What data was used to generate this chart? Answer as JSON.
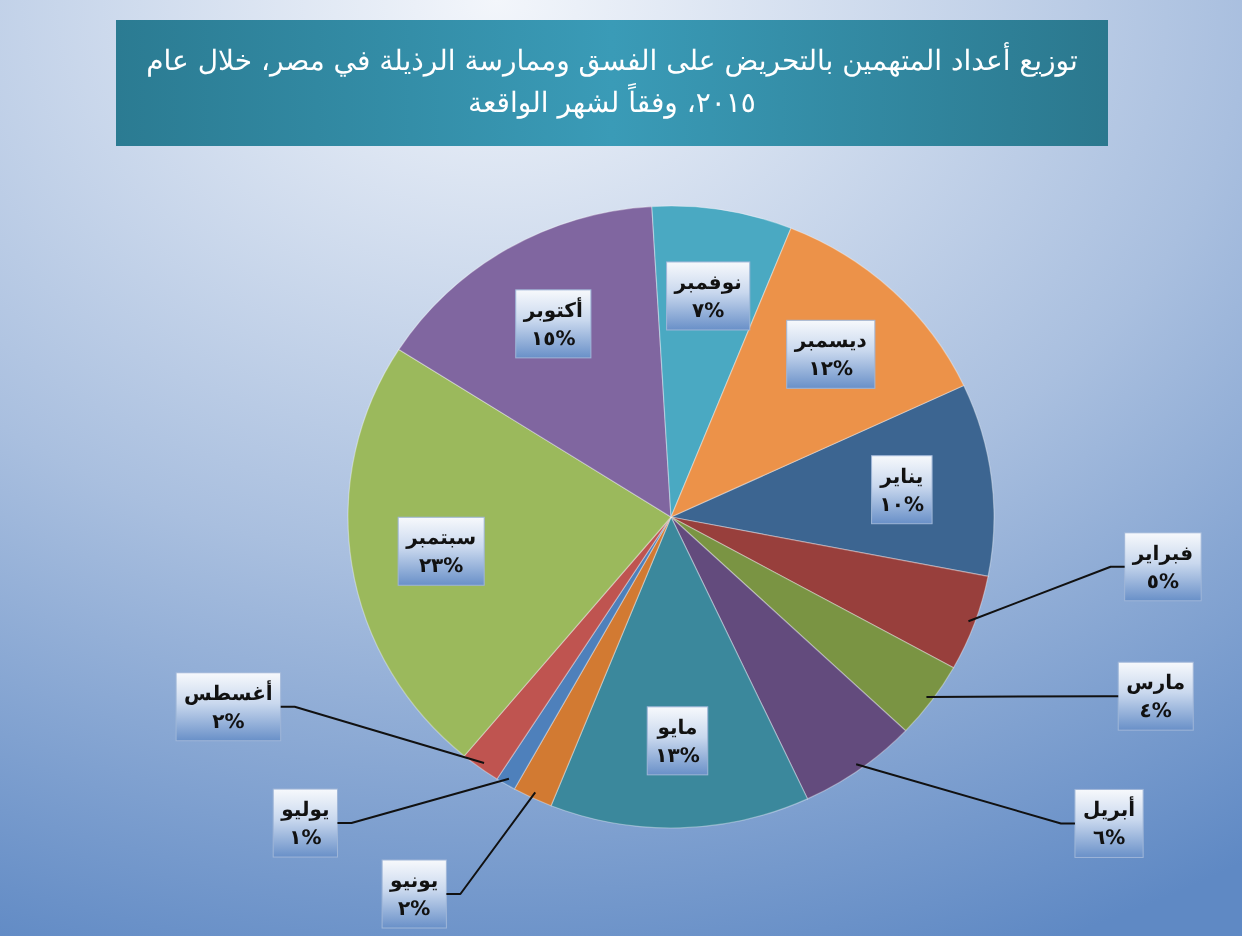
{
  "chart_data": {
    "type": "pie",
    "title": "توزيع أعداد المتهمين بالتحريض على الفسق وممارسة الرذيلة في مصر، خلال عام ٢٠١٥، وفقاً لشهر الواقعة",
    "categories": [
      "يناير",
      "فبراير",
      "مارس",
      "أبريل",
      "مايو",
      "يونيو",
      "يوليو",
      "أغسطس",
      "سبتمبر",
      "أكتوبر",
      "نوفمبر",
      "ديسمبر"
    ],
    "values": [
      10,
      5,
      4,
      6,
      13,
      2,
      1,
      2,
      23,
      15,
      7,
      12
    ],
    "value_labels": [
      "١٠%",
      "٥%",
      "٤%",
      "٦%",
      "١٣%",
      "٢%",
      "١%",
      "٢%",
      "٢٣%",
      "١٥%",
      "٧%",
      "١٢%"
    ],
    "colors": [
      "#3c6591",
      "#983f3c",
      "#7a9443",
      "#634b7d",
      "#3b889c",
      "#d27a32",
      "#4e80bb",
      "#bf5450",
      "#9bb95c",
      "#8066a0",
      "#4aa9c2",
      "#ec9249"
    ]
  }
}
